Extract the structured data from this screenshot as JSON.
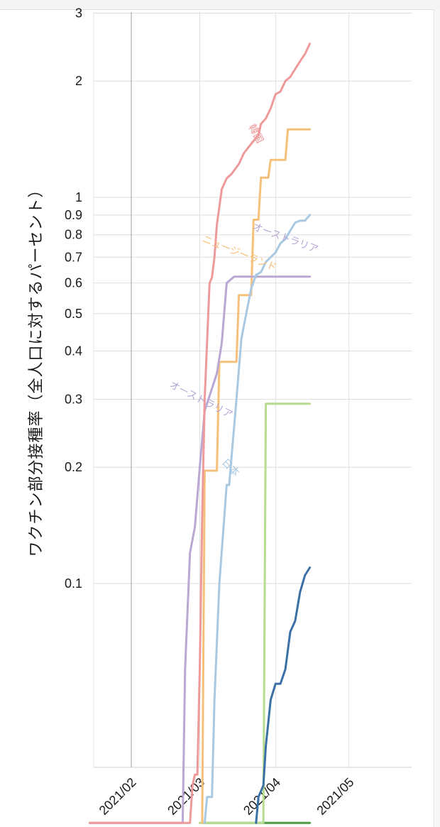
{
  "chart_data": {
    "type": "line",
    "ylabel": "ワクチン部分接種率（全人口に対するパーセント）",
    "xlabel": "",
    "title": "",
    "yscale": "log",
    "ylim": [
      0.024,
      3.0
    ],
    "xlim": [
      "2021-01-15",
      "2021-05-31"
    ],
    "y_ticks": [
      {
        "value": 3,
        "label": "3"
      },
      {
        "value": 2,
        "label": "2"
      },
      {
        "value": 1,
        "label": "1"
      },
      {
        "value": 0.9,
        "label": "0.9"
      },
      {
        "value": 0.8,
        "label": "0.8"
      },
      {
        "value": 0.7,
        "label": "0.7"
      },
      {
        "value": 0.6,
        "label": "0.6"
      },
      {
        "value": 0.5,
        "label": "0.5"
      },
      {
        "value": 0.4,
        "label": "0.4"
      },
      {
        "value": 0.3,
        "label": "0.3"
      },
      {
        "value": 0.2,
        "label": "0.2"
      },
      {
        "value": 0.1,
        "label": "0.1"
      }
    ],
    "x_ticks": [
      {
        "value": "2021-02-01",
        "label": "2021/02"
      },
      {
        "value": "2021-03-01",
        "label": "2021/03"
      },
      {
        "value": "2021-04-01",
        "label": "2021/04"
      },
      {
        "value": "2021-05-01",
        "label": "2021/05"
      }
    ],
    "grid": true,
    "series": [
      {
        "name": "韓国",
        "color": "#ee9a9a",
        "x": [
          "2021-01-15",
          "2021-02-25",
          "2021-02-26",
          "2021-02-27",
          "2021-02-28",
          "2021-03-01",
          "2021-03-02",
          "2021-03-03",
          "2021-03-05",
          "2021-03-06",
          "2021-03-07",
          "2021-03-08",
          "2021-03-10",
          "2021-03-12",
          "2021-03-14",
          "2021-03-17",
          "2021-03-19",
          "2021-03-21",
          "2021-03-23",
          "2021-03-25",
          "2021-03-26",
          "2021-03-28",
          "2021-03-30",
          "2021-04-01",
          "2021-04-03",
          "2021-04-05",
          "2021-04-07",
          "2021-04-09",
          "2021-04-11",
          "2021-04-13",
          "2021-04-15"
        ],
        "y": [
          0.024,
          0.024,
          0.03,
          0.032,
          0.032,
          0.06,
          0.15,
          0.3,
          0.6,
          0.62,
          0.7,
          0.85,
          1.05,
          1.12,
          1.15,
          1.22,
          1.3,
          1.35,
          1.4,
          1.45,
          1.55,
          1.6,
          1.7,
          1.85,
          1.88,
          2.0,
          2.05,
          2.15,
          2.25,
          2.35,
          2.5
        ]
      },
      {
        "name": "ニュージーランド",
        "color": "#f5c17a",
        "x": [
          "2021-03-02",
          "2021-03-03",
          "2021-03-08",
          "2021-03-09",
          "2021-03-16",
          "2021-03-17",
          "2021-03-22",
          "2021-03-23",
          "2021-03-25",
          "2021-03-26",
          "2021-03-29",
          "2021-03-30",
          "2021-04-05",
          "2021-04-06",
          "2021-04-15"
        ],
        "y": [
          0.024,
          0.196,
          0.196,
          0.375,
          0.375,
          0.558,
          0.558,
          0.875,
          0.875,
          1.125,
          1.125,
          1.25,
          1.25,
          1.5,
          1.5
        ]
      },
      {
        "name": "オーストラリア",
        "color": "#b9a7d4",
        "x": [
          "2021-01-15",
          "2021-02-22",
          "2021-02-23",
          "2021-02-25",
          "2021-02-27",
          "2021-03-01",
          "2021-03-03",
          "2021-03-06",
          "2021-03-08",
          "2021-03-10",
          "2021-03-12",
          "2021-03-15",
          "2021-04-15"
        ],
        "y": [
          0.024,
          0.024,
          0.06,
          0.12,
          0.14,
          0.2,
          0.28,
          0.32,
          0.35,
          0.42,
          0.6,
          0.623,
          0.623
        ]
      },
      {
        "name": "日本",
        "color": "#a9c9e2",
        "x": [
          "2021-03-03",
          "2021-03-04",
          "2021-03-06",
          "2021-03-07",
          "2021-03-09",
          "2021-03-12",
          "2021-03-13",
          "2021-03-16",
          "2021-03-18",
          "2021-03-20",
          "2021-03-22",
          "2021-03-24",
          "2021-03-26",
          "2021-03-28",
          "2021-03-30",
          "2021-04-01",
          "2021-04-03",
          "2021-04-05",
          "2021-04-07",
          "2021-04-09",
          "2021-04-11",
          "2021-04-13",
          "2021-04-15"
        ],
        "y": [
          0.024,
          0.028,
          0.028,
          0.05,
          0.1,
          0.18,
          0.18,
          0.3,
          0.43,
          0.5,
          0.58,
          0.63,
          0.64,
          0.68,
          0.7,
          0.72,
          0.76,
          0.78,
          0.82,
          0.86,
          0.87,
          0.87,
          0.9
        ]
      },
      {
        "name": "",
        "color": "#b6dc90",
        "x": [
          "2021-03-01",
          "2021-03-27",
          "2021-03-28",
          "2021-04-15"
        ],
        "y": [
          0.024,
          0.024,
          0.292,
          0.292
        ]
      },
      {
        "name": "",
        "color": "#3a70a6",
        "x": [
          "2021-03-24",
          "2021-03-25",
          "2021-03-27",
          "2021-03-28",
          "2021-03-30",
          "2021-04-01",
          "2021-04-03",
          "2021-04-05",
          "2021-04-07",
          "2021-04-09",
          "2021-04-11",
          "2021-04-13",
          "2021-04-15"
        ],
        "y": [
          0.024,
          0.028,
          0.03,
          0.038,
          0.05,
          0.055,
          0.055,
          0.06,
          0.075,
          0.08,
          0.095,
          0.105,
          0.11
        ]
      },
      {
        "name": "",
        "color": "#4b9b3f",
        "x": [
          "2021-03-02",
          "2021-04-15"
        ],
        "y": [
          0.024,
          0.024
        ]
      }
    ],
    "annotations": [
      {
        "series": "韓国",
        "text": "韓国"
      },
      {
        "series": "ニュージーランド",
        "text": "ニュージーランド"
      },
      {
        "series": "オーストラリア",
        "text": "オーストラリア"
      },
      {
        "series": "日本",
        "text": "日本"
      },
      {
        "series": "日本",
        "text": "オーストラリア"
      }
    ]
  }
}
